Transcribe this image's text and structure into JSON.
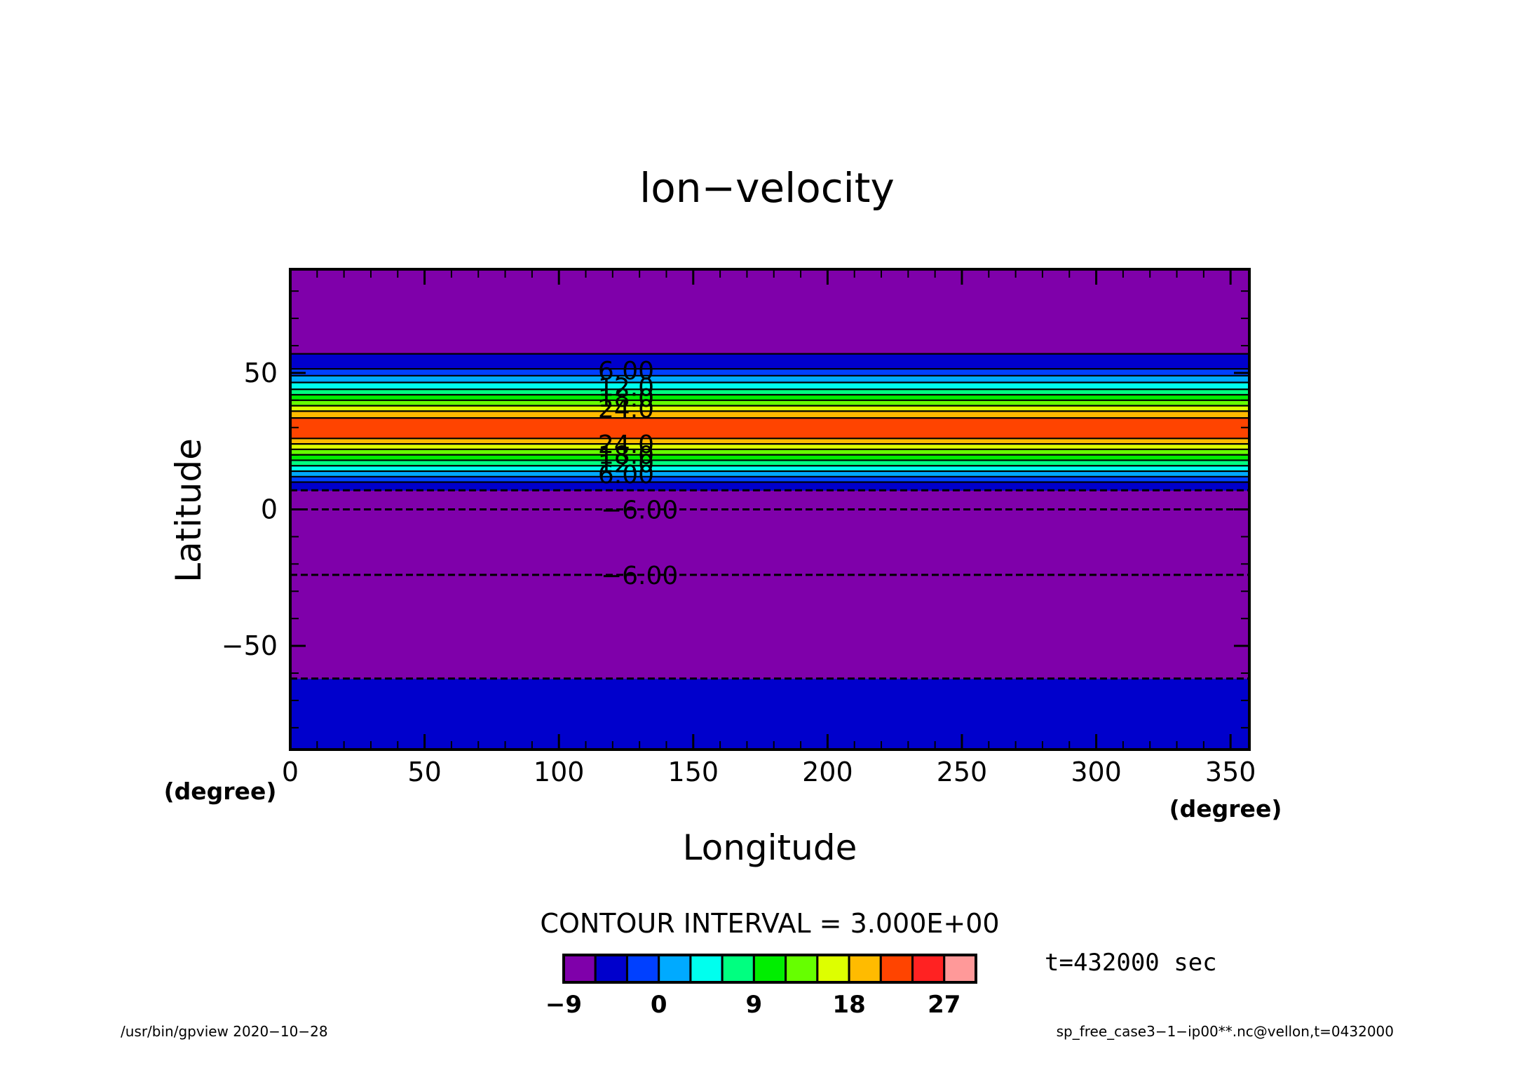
{
  "chart_data": {
    "type": "heatmap",
    "title": "lon−velocity",
    "xlabel": "Longitude",
    "ylabel": "Latitude",
    "x_unit": "(degree)",
    "y_unit": "(degree)",
    "xlim": [
      0,
      357
    ],
    "ylim": [
      -88,
      88
    ],
    "x_ticks": [
      "0",
      "50",
      "100",
      "150",
      "200",
      "250",
      "300",
      "350"
    ],
    "y_ticks": [
      "−50",
      "0",
      "50"
    ],
    "contour_interval_label": "CONTOUR INTERVAL = 3.000E+00",
    "contour_levels": [
      -9,
      -6,
      -3,
      0,
      3,
      6,
      9,
      12,
      15,
      18,
      21,
      24,
      27,
      30
    ],
    "colors": [
      "#7f00aa",
      "#0000cc",
      "#0040ff",
      "#00aaff",
      "#00ffee",
      "#00ff80",
      "#00ee00",
      "#66ff00",
      "#ddff00",
      "#ffbb00",
      "#ff4400",
      "#ff2222",
      "#ff9999"
    ],
    "latitude_bands": [
      {
        "from": -88,
        "to": -62,
        "value": -4.5
      },
      {
        "from": -62,
        "to": -24,
        "value": -7.5
      },
      {
        "from": -24,
        "to": 0,
        "value": -10.5
      },
      {
        "from": 0,
        "to": 7,
        "value": -7.5
      },
      {
        "from": 7,
        "to": 10,
        "value": -4.5
      },
      {
        "from": 10,
        "to": 12,
        "value": -1.5
      },
      {
        "from": 12,
        "to": 14,
        "value": 1.5
      },
      {
        "from": 14,
        "to": 16,
        "value": 4.5
      },
      {
        "from": 16,
        "to": 18,
        "value": 7.5
      },
      {
        "from": 18,
        "to": 20,
        "value": 10.5
      },
      {
        "from": 20,
        "to": 22,
        "value": 13.5
      },
      {
        "from": 22,
        "to": 24,
        "value": 16.5
      },
      {
        "from": 24,
        "to": 26,
        "value": 19.5
      },
      {
        "from": 26,
        "to": 33.5,
        "value": 22.5
      },
      {
        "from": 33.5,
        "to": 36,
        "value": 19.5
      },
      {
        "from": 36,
        "to": 38,
        "value": 16.5
      },
      {
        "from": 38,
        "to": 40,
        "value": 13.5
      },
      {
        "from": 40,
        "to": 42,
        "value": 10.5
      },
      {
        "from": 42,
        "to": 44,
        "value": 7.5
      },
      {
        "from": 44,
        "to": 46.5,
        "value": 4.5
      },
      {
        "from": 46.5,
        "to": 49,
        "value": 1.5
      },
      {
        "from": 49,
        "to": 51.5,
        "value": -1.5
      },
      {
        "from": 51.5,
        "to": 57,
        "value": -4.5
      },
      {
        "from": 57,
        "to": 88,
        "value": -7.5
      }
    ],
    "contour_lines": [
      {
        "lat": 57,
        "dashed": false
      },
      {
        "lat": 51.5,
        "dashed": false
      },
      {
        "lat": 49,
        "dashed": false
      },
      {
        "lat": 46.5,
        "dashed": false
      },
      {
        "lat": 44,
        "dashed": false
      },
      {
        "lat": 42,
        "dashed": false
      },
      {
        "lat": 40,
        "dashed": false
      },
      {
        "lat": 38,
        "dashed": false
      },
      {
        "lat": 36,
        "dashed": false
      },
      {
        "lat": 33.5,
        "dashed": false
      },
      {
        "lat": 26,
        "dashed": false
      },
      {
        "lat": 24,
        "dashed": false
      },
      {
        "lat": 22,
        "dashed": false
      },
      {
        "lat": 20,
        "dashed": false
      },
      {
        "lat": 18,
        "dashed": false
      },
      {
        "lat": 16,
        "dashed": false
      },
      {
        "lat": 14,
        "dashed": false
      },
      {
        "lat": 12,
        "dashed": false
      },
      {
        "lat": 10,
        "dashed": false
      },
      {
        "lat": 7,
        "dashed": true
      },
      {
        "lat": 0,
        "dashed": true
      },
      {
        "lat": -24,
        "dashed": true
      },
      {
        "lat": -62,
        "dashed": true
      }
    ],
    "contour_labels": [
      {
        "text": "6.00",
        "lon": 125,
        "lat": 51
      },
      {
        "text": "12.0",
        "lon": 125,
        "lat": 45
      },
      {
        "text": "18.0",
        "lon": 125,
        "lat": 41
      },
      {
        "text": "24.0",
        "lon": 125,
        "lat": 37
      },
      {
        "text": "24.0",
        "lon": 125,
        "lat": 24
      },
      {
        "text": "18.0",
        "lon": 125,
        "lat": 20
      },
      {
        "text": "12.0",
        "lon": 125,
        "lat": 17
      },
      {
        "text": "6.00",
        "lon": 125,
        "lat": 13
      },
      {
        "text": "−6.00",
        "lon": 130,
        "lat": 0
      },
      {
        "text": "−6.00",
        "lon": 130,
        "lat": -24
      }
    ],
    "colorbar_tick_labels": [
      {
        "text": "−9",
        "value": -9
      },
      {
        "text": "0",
        "value": 0
      },
      {
        "text": "9",
        "value": 9
      },
      {
        "text": "18",
        "value": 18
      },
      {
        "text": "27",
        "value": 27
      }
    ]
  },
  "annotations": {
    "time": "t=432000 sec",
    "footer_left": "/usr/bin/gpview   2020−10−28",
    "footer_right": "sp_free_case3−1−ip00**.nc@vellon,t=0432000"
  }
}
